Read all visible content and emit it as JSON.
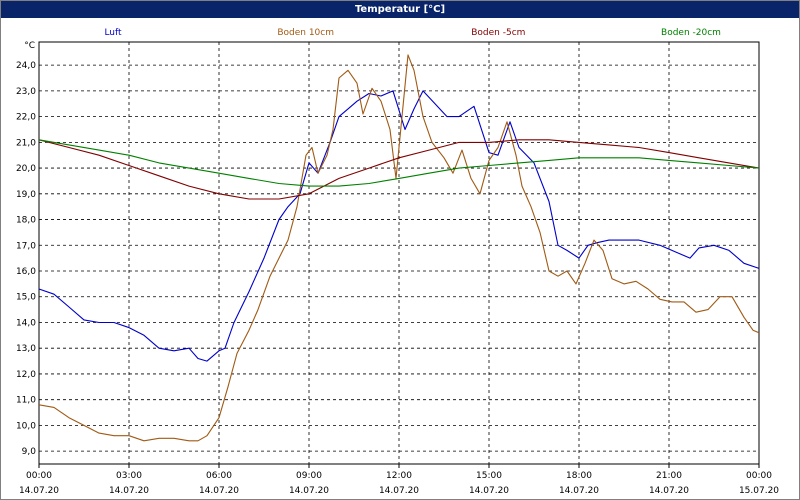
{
  "window": {
    "title": "Temperatur [°C]"
  },
  "chart_data": {
    "type": "line",
    "title": "Temperatur [°C]",
    "y_unit": "°C",
    "ylim": [
      8.5,
      24.9
    ],
    "y_ticks": [
      9.0,
      10.0,
      11.0,
      12.0,
      13.0,
      14.0,
      15.0,
      16.0,
      17.0,
      18.0,
      19.0,
      20.0,
      21.0,
      22.0,
      23.0,
      24.0
    ],
    "x_range_hours": [
      0,
      24
    ],
    "x_ticks": [
      {
        "h": 0,
        "time": "00:00",
        "date": "14.07.20"
      },
      {
        "h": 3,
        "time": "03:00",
        "date": "14.07.20"
      },
      {
        "h": 6,
        "time": "06:00",
        "date": "14.07.20"
      },
      {
        "h": 9,
        "time": "09:00",
        "date": "14.07.20"
      },
      {
        "h": 12,
        "time": "12:00",
        "date": "14.07.20"
      },
      {
        "h": 15,
        "time": "15:00",
        "date": "14.07.20"
      },
      {
        "h": 18,
        "time": "18:00",
        "date": "14.07.20"
      },
      {
        "h": 21,
        "time": "21:00",
        "date": "14.07.20"
      },
      {
        "h": 24,
        "time": "00:00",
        "date": "15.07.20"
      }
    ],
    "grid": true,
    "legend_position": "top",
    "series": [
      {
        "name": "Luft",
        "color": "#0000cc",
        "points": [
          [
            0,
            15.3
          ],
          [
            0.5,
            15.1
          ],
          [
            1,
            14.6
          ],
          [
            1.5,
            14.1
          ],
          [
            2,
            14.0
          ],
          [
            2.5,
            14.0
          ],
          [
            3,
            13.8
          ],
          [
            3.5,
            13.5
          ],
          [
            4,
            13.0
          ],
          [
            4.5,
            12.9
          ],
          [
            5,
            13.0
          ],
          [
            5.3,
            12.6
          ],
          [
            5.6,
            12.5
          ],
          [
            6,
            12.9
          ],
          [
            6.2,
            13.0
          ],
          [
            6.5,
            14.0
          ],
          [
            7,
            15.2
          ],
          [
            7.5,
            16.5
          ],
          [
            8,
            18.0
          ],
          [
            8.3,
            18.5
          ],
          [
            8.7,
            19.0
          ],
          [
            9,
            20.2
          ],
          [
            9.3,
            19.8
          ],
          [
            9.7,
            21.0
          ],
          [
            10,
            22.0
          ],
          [
            10.3,
            22.3
          ],
          [
            10.6,
            22.6
          ],
          [
            11,
            22.9
          ],
          [
            11.4,
            22.8
          ],
          [
            11.8,
            23.0
          ],
          [
            12.2,
            21.5
          ],
          [
            12.5,
            22.3
          ],
          [
            12.8,
            23.0
          ],
          [
            13.2,
            22.5
          ],
          [
            13.6,
            22.0
          ],
          [
            14,
            22.0
          ],
          [
            14.5,
            22.4
          ],
          [
            15,
            20.6
          ],
          [
            15.3,
            20.5
          ],
          [
            15.7,
            21.8
          ],
          [
            16,
            20.8
          ],
          [
            16.5,
            20.2
          ],
          [
            17,
            18.7
          ],
          [
            17.3,
            17.0
          ],
          [
            17.6,
            16.8
          ],
          [
            18,
            16.5
          ],
          [
            18.3,
            17.0
          ],
          [
            18.6,
            17.1
          ],
          [
            19,
            17.2
          ],
          [
            20,
            17.2
          ],
          [
            20.7,
            17.0
          ],
          [
            21.3,
            16.7
          ],
          [
            21.7,
            16.5
          ],
          [
            22,
            16.9
          ],
          [
            22.5,
            17.0
          ],
          [
            23,
            16.8
          ],
          [
            23.5,
            16.3
          ],
          [
            24,
            16.1
          ]
        ]
      },
      {
        "name": "Boden 10cm",
        "color": "#a05a14",
        "points": [
          [
            0,
            10.8
          ],
          [
            0.5,
            10.7
          ],
          [
            1,
            10.3
          ],
          [
            1.5,
            10.0
          ],
          [
            2,
            9.7
          ],
          [
            2.5,
            9.6
          ],
          [
            3,
            9.6
          ],
          [
            3.5,
            9.4
          ],
          [
            4,
            9.5
          ],
          [
            4.5,
            9.5
          ],
          [
            5,
            9.4
          ],
          [
            5.3,
            9.4
          ],
          [
            5.6,
            9.6
          ],
          [
            6,
            10.3
          ],
          [
            6.3,
            11.5
          ],
          [
            6.6,
            12.8
          ],
          [
            7,
            13.7
          ],
          [
            7.3,
            14.5
          ],
          [
            7.7,
            15.8
          ],
          [
            8,
            16.5
          ],
          [
            8.3,
            17.2
          ],
          [
            8.6,
            18.5
          ],
          [
            8.9,
            20.5
          ],
          [
            9.1,
            20.8
          ],
          [
            9.3,
            19.8
          ],
          [
            9.6,
            20.5
          ],
          [
            9.8,
            21.5
          ],
          [
            10,
            23.5
          ],
          [
            10.3,
            23.8
          ],
          [
            10.6,
            23.3
          ],
          [
            10.8,
            22.1
          ],
          [
            11.1,
            23.1
          ],
          [
            11.4,
            22.6
          ],
          [
            11.7,
            21.5
          ],
          [
            11.9,
            19.6
          ],
          [
            12.1,
            22.0
          ],
          [
            12.3,
            24.4
          ],
          [
            12.5,
            23.8
          ],
          [
            12.8,
            22.0
          ],
          [
            13.1,
            21.0
          ],
          [
            13.5,
            20.4
          ],
          [
            13.8,
            19.8
          ],
          [
            14.1,
            20.7
          ],
          [
            14.4,
            19.6
          ],
          [
            14.7,
            19.0
          ],
          [
            15,
            20.3
          ],
          [
            15.3,
            20.8
          ],
          [
            15.6,
            21.8
          ],
          [
            15.9,
            20.5
          ],
          [
            16.1,
            19.3
          ],
          [
            16.4,
            18.5
          ],
          [
            16.7,
            17.5
          ],
          [
            17,
            16.0
          ],
          [
            17.3,
            15.8
          ],
          [
            17.6,
            16.0
          ],
          [
            17.9,
            15.5
          ],
          [
            18.2,
            16.3
          ],
          [
            18.5,
            17.2
          ],
          [
            18.8,
            16.8
          ],
          [
            19.1,
            15.7
          ],
          [
            19.5,
            15.5
          ],
          [
            19.9,
            15.6
          ],
          [
            20.3,
            15.3
          ],
          [
            20.7,
            14.9
          ],
          [
            21.1,
            14.8
          ],
          [
            21.5,
            14.8
          ],
          [
            21.9,
            14.4
          ],
          [
            22.3,
            14.5
          ],
          [
            22.7,
            15.0
          ],
          [
            23.1,
            15.0
          ],
          [
            23.5,
            14.2
          ],
          [
            23.8,
            13.7
          ],
          [
            24,
            13.6
          ]
        ]
      },
      {
        "name": "Boden -5cm",
        "color": "#800000",
        "points": [
          [
            0,
            21.1
          ],
          [
            1,
            20.8
          ],
          [
            2,
            20.5
          ],
          [
            3,
            20.1
          ],
          [
            4,
            19.7
          ],
          [
            5,
            19.3
          ],
          [
            6,
            19.0
          ],
          [
            7,
            18.8
          ],
          [
            8,
            18.8
          ],
          [
            9,
            19.0
          ],
          [
            10,
            19.6
          ],
          [
            11,
            20.0
          ],
          [
            12,
            20.4
          ],
          [
            13,
            20.7
          ],
          [
            14,
            21.0
          ],
          [
            15,
            21.0
          ],
          [
            16,
            21.1
          ],
          [
            17,
            21.1
          ],
          [
            18,
            21.0
          ],
          [
            19,
            20.9
          ],
          [
            20,
            20.8
          ],
          [
            21,
            20.6
          ],
          [
            22,
            20.4
          ],
          [
            23,
            20.2
          ],
          [
            24,
            20.0
          ]
        ]
      },
      {
        "name": "Boden -20cm",
        "color": "#008000",
        "points": [
          [
            0,
            21.1
          ],
          [
            1,
            20.9
          ],
          [
            2,
            20.7
          ],
          [
            3,
            20.5
          ],
          [
            4,
            20.2
          ],
          [
            5,
            20.0
          ],
          [
            6,
            19.8
          ],
          [
            7,
            19.6
          ],
          [
            8,
            19.4
          ],
          [
            9,
            19.3
          ],
          [
            10,
            19.3
          ],
          [
            11,
            19.4
          ],
          [
            12,
            19.6
          ],
          [
            13,
            19.8
          ],
          [
            14,
            20.0
          ],
          [
            15,
            20.1
          ],
          [
            16,
            20.2
          ],
          [
            17,
            20.3
          ],
          [
            18,
            20.4
          ],
          [
            19,
            20.4
          ],
          [
            20,
            20.4
          ],
          [
            21,
            20.3
          ],
          [
            22,
            20.2
          ],
          [
            23,
            20.1
          ],
          [
            24,
            20.0
          ]
        ]
      }
    ]
  }
}
